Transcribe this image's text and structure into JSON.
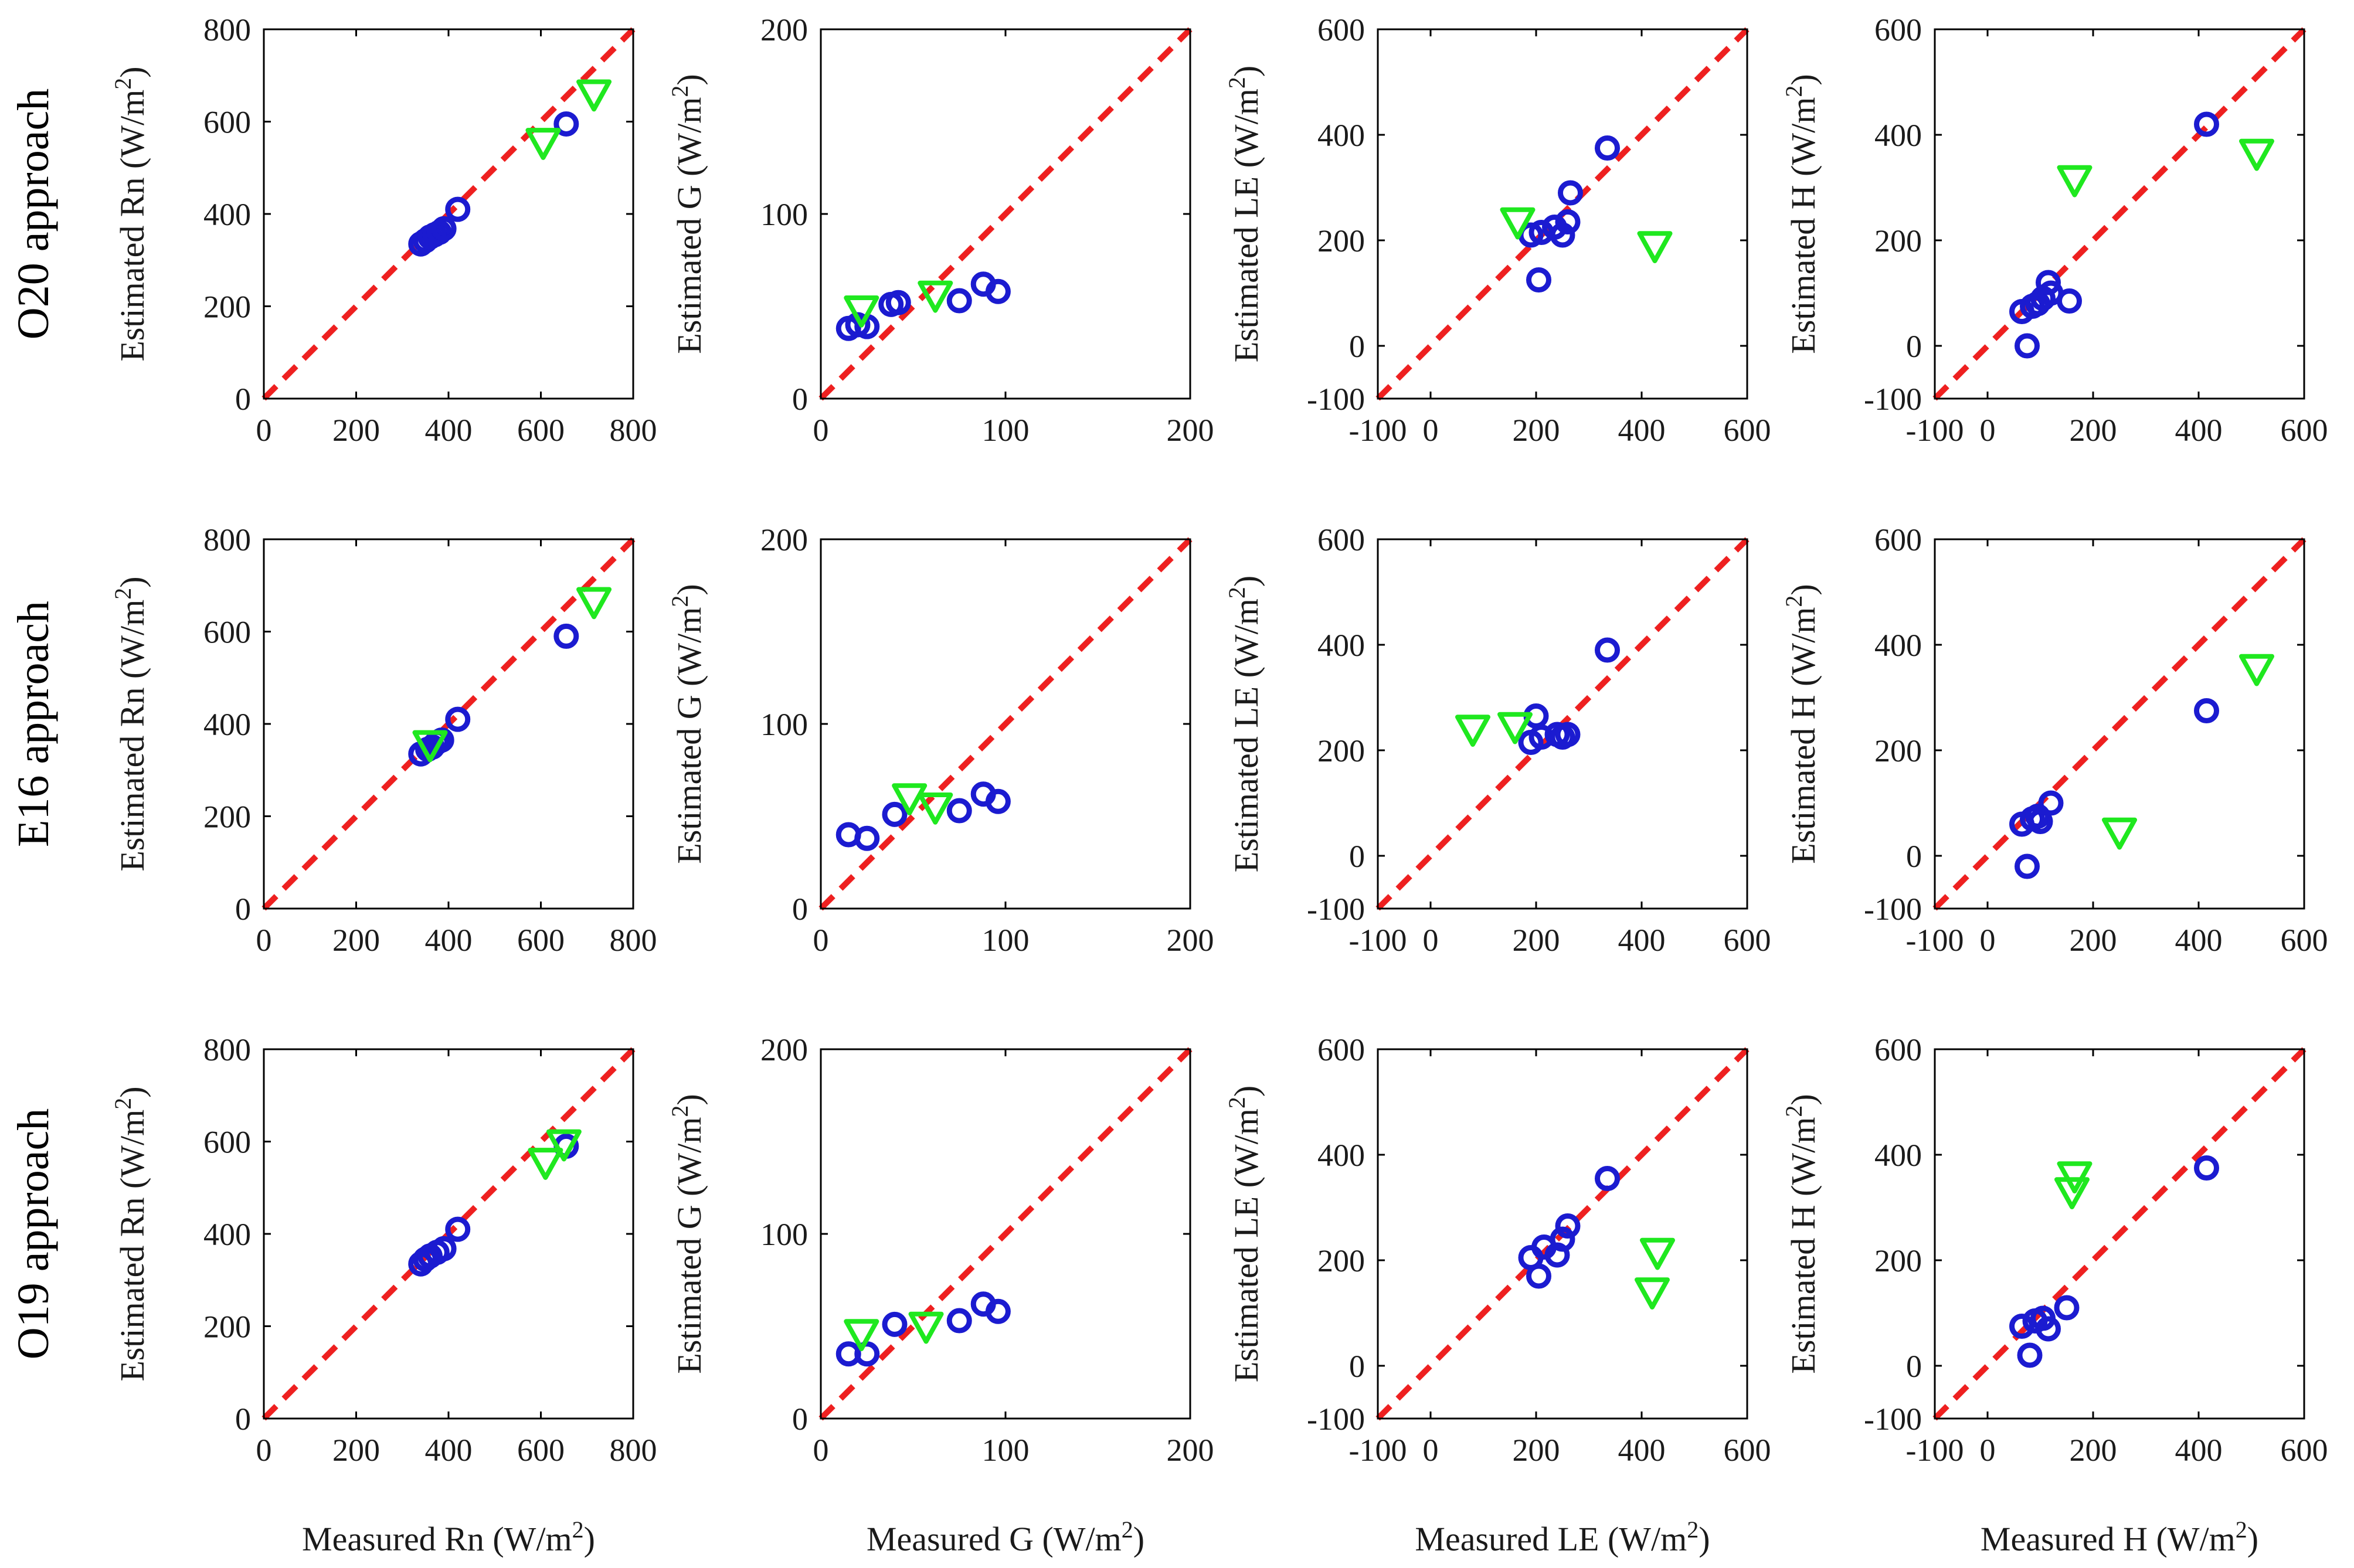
{
  "figure": {
    "row_labels": [
      "O20 approach",
      "E16 approach",
      "O19 approach"
    ],
    "x_labels": [
      "Measured Rn (W/m2)",
      "Measured G (W/m2)",
      "Measured LE (W/m2)",
      "Measured H (W/m2)"
    ],
    "colors": {
      "circle": "#1b1bd0",
      "triangle": "#1fe81f",
      "line": "#ee2020",
      "axis": "#000000"
    }
  },
  "chart_data": [
    {
      "type": "scatter",
      "panel": "O20 approach / Rn",
      "ylabel": "Estimated Rn (W/m2)",
      "xlim": [
        0,
        800
      ],
      "ylim": [
        0,
        800
      ],
      "xticks": [
        0,
        200,
        400,
        600,
        800
      ],
      "yticks": [
        0,
        200,
        400,
        600,
        800
      ],
      "series": [
        {
          "marker": "circle",
          "points": [
            [
              340,
              335
            ],
            [
              350,
              342
            ],
            [
              360,
              350
            ],
            [
              370,
              355
            ],
            [
              380,
              360
            ],
            [
              390,
              368
            ],
            [
              420,
              410
            ],
            [
              655,
              595
            ]
          ]
        },
        {
          "marker": "triangle",
          "points": [
            [
              605,
              555
            ],
            [
              715,
              660
            ]
          ]
        }
      ]
    },
    {
      "type": "scatter",
      "panel": "O20 approach / G",
      "ylabel": "Estimated G (W/m2)",
      "xlim": [
        0,
        200
      ],
      "ylim": [
        0,
        200
      ],
      "xticks": [
        0,
        100,
        200
      ],
      "yticks": [
        0,
        100,
        200
      ],
      "series": [
        {
          "marker": "circle",
          "points": [
            [
              15,
              38
            ],
            [
              20,
              40
            ],
            [
              25,
              39
            ],
            [
              38,
              51
            ],
            [
              42,
              52
            ],
            [
              75,
              53
            ],
            [
              88,
              62
            ],
            [
              96,
              58
            ]
          ]
        },
        {
          "marker": "triangle",
          "points": [
            [
              22,
              48
            ],
            [
              62,
              56
            ]
          ]
        }
      ]
    },
    {
      "type": "scatter",
      "panel": "O20 approach / LE",
      "ylabel": "Estimated LE (W/m2)",
      "xlim": [
        -100,
        600
      ],
      "ylim": [
        -100,
        600
      ],
      "xticks": [
        -100,
        0,
        200,
        400,
        600
      ],
      "yticks": [
        -100,
        0,
        200,
        400,
        600
      ],
      "series": [
        {
          "marker": "circle",
          "points": [
            [
              190,
              210
            ],
            [
              205,
              125
            ],
            [
              210,
              215
            ],
            [
              235,
              225
            ],
            [
              250,
              210
            ],
            [
              260,
              235
            ],
            [
              265,
              290
            ],
            [
              335,
              375
            ]
          ]
        },
        {
          "marker": "triangle",
          "points": [
            [
              165,
              235
            ],
            [
              425,
              190
            ]
          ]
        }
      ]
    },
    {
      "type": "scatter",
      "panel": "O20 approach / H",
      "ylabel": "Estimated H (W/m2)",
      "xlim": [
        -100,
        600
      ],
      "ylim": [
        -100,
        600
      ],
      "xticks": [
        -100,
        0,
        200,
        400,
        600
      ],
      "yticks": [
        -100,
        0,
        200,
        400,
        600
      ],
      "series": [
        {
          "marker": "circle",
          "points": [
            [
              65,
              65
            ],
            [
              75,
              0
            ],
            [
              85,
              75
            ],
            [
              95,
              80
            ],
            [
              105,
              90
            ],
            [
              115,
              120
            ],
            [
              120,
              100
            ],
            [
              155,
              85
            ],
            [
              415,
              420
            ]
          ]
        },
        {
          "marker": "triangle",
          "points": [
            [
              165,
              315
            ],
            [
              510,
              365
            ]
          ]
        }
      ]
    },
    {
      "type": "scatter",
      "panel": "E16 approach / Rn",
      "ylabel": "Estimated Rn (W/m2)",
      "xlim": [
        0,
        800
      ],
      "ylim": [
        0,
        800
      ],
      "xticks": [
        0,
        200,
        400,
        600,
        800
      ],
      "yticks": [
        0,
        200,
        400,
        600,
        800
      ],
      "series": [
        {
          "marker": "circle",
          "points": [
            [
              340,
              335
            ],
            [
              355,
              345
            ],
            [
              365,
              350
            ],
            [
              375,
              360
            ],
            [
              385,
              365
            ],
            [
              420,
              410
            ],
            [
              655,
              590
            ]
          ]
        },
        {
          "marker": "triangle",
          "points": [
            [
              360,
              355
            ],
            [
              715,
              665
            ]
          ]
        }
      ]
    },
    {
      "type": "scatter",
      "panel": "E16 approach / G",
      "ylabel": "Estimated G (W/m2)",
      "xlim": [
        0,
        200
      ],
      "ylim": [
        0,
        200
      ],
      "xticks": [
        0,
        100,
        200
      ],
      "yticks": [
        0,
        100,
        200
      ],
      "series": [
        {
          "marker": "circle",
          "points": [
            [
              15,
              40
            ],
            [
              25,
              38
            ],
            [
              40,
              51
            ],
            [
              75,
              53
            ],
            [
              88,
              62
            ],
            [
              96,
              58
            ]
          ]
        },
        {
          "marker": "triangle",
          "points": [
            [
              48,
              60
            ],
            [
              62,
              55
            ]
          ]
        }
      ]
    },
    {
      "type": "scatter",
      "panel": "E16 approach / LE",
      "ylabel": "Estimated LE (W/m2)",
      "xlim": [
        -100,
        600
      ],
      "ylim": [
        -100,
        600
      ],
      "xticks": [
        -100,
        0,
        200,
        400,
        600
      ],
      "yticks": [
        -100,
        0,
        200,
        400,
        600
      ],
      "series": [
        {
          "marker": "circle",
          "points": [
            [
              190,
              215
            ],
            [
              200,
              265
            ],
            [
              210,
              225
            ],
            [
              240,
              230
            ],
            [
              250,
              225
            ],
            [
              260,
              230
            ],
            [
              335,
              390
            ]
          ]
        },
        {
          "marker": "triangle",
          "points": [
            [
              80,
              240
            ],
            [
              160,
              245
            ]
          ]
        }
      ]
    },
    {
      "type": "scatter",
      "panel": "E16 approach / H",
      "ylabel": "Estimated H (W/m2)",
      "xlim": [
        -100,
        600
      ],
      "ylim": [
        -100,
        600
      ],
      "xticks": [
        -100,
        0,
        200,
        400,
        600
      ],
      "yticks": [
        -100,
        0,
        200,
        400,
        600
      ],
      "series": [
        {
          "marker": "circle",
          "points": [
            [
              65,
              60
            ],
            [
              75,
              -20
            ],
            [
              85,
              70
            ],
            [
              95,
              75
            ],
            [
              100,
              65
            ],
            [
              120,
              100
            ],
            [
              415,
              275
            ]
          ]
        },
        {
          "marker": "triangle",
          "points": [
            [
              250,
              45
            ],
            [
              510,
              355
            ]
          ]
        }
      ]
    },
    {
      "type": "scatter",
      "panel": "O19 approach / Rn",
      "ylabel": "Estimated Rn (W/m2)",
      "xlim": [
        0,
        800
      ],
      "ylim": [
        0,
        800
      ],
      "xticks": [
        0,
        200,
        400,
        600,
        800
      ],
      "yticks": [
        0,
        200,
        400,
        600,
        800
      ],
      "series": [
        {
          "marker": "circle",
          "points": [
            [
              340,
              335
            ],
            [
              350,
              345
            ],
            [
              360,
              352
            ],
            [
              375,
              360
            ],
            [
              390,
              368
            ],
            [
              420,
              410
            ],
            [
              655,
              590
            ]
          ]
        },
        {
          "marker": "triangle",
          "points": [
            [
              610,
              555
            ],
            [
              650,
              595
            ]
          ]
        }
      ]
    },
    {
      "type": "scatter",
      "panel": "O19 approach / G",
      "ylabel": "Estimated G (W/m2)",
      "xlim": [
        0,
        200
      ],
      "ylim": [
        0,
        200
      ],
      "xticks": [
        0,
        100,
        200
      ],
      "yticks": [
        0,
        100,
        200
      ],
      "series": [
        {
          "marker": "circle",
          "points": [
            [
              15,
              35
            ],
            [
              25,
              35
            ],
            [
              40,
              51
            ],
            [
              75,
              53
            ],
            [
              88,
              62
            ],
            [
              96,
              58
            ]
          ]
        },
        {
          "marker": "triangle",
          "points": [
            [
              22,
              46
            ],
            [
              57,
              50
            ]
          ]
        }
      ]
    },
    {
      "type": "scatter",
      "panel": "O19 approach / LE",
      "ylabel": "Estimated LE (W/m2)",
      "xlim": [
        -100,
        600
      ],
      "ylim": [
        -100,
        600
      ],
      "xticks": [
        -100,
        0,
        200,
        400,
        600
      ],
      "yticks": [
        -100,
        0,
        200,
        400,
        600
      ],
      "series": [
        {
          "marker": "circle",
          "points": [
            [
              190,
              205
            ],
            [
              205,
              170
            ],
            [
              215,
              225
            ],
            [
              240,
              210
            ],
            [
              250,
              240
            ],
            [
              260,
              265
            ],
            [
              335,
              355
            ]
          ]
        },
        {
          "marker": "triangle",
          "points": [
            [
              430,
              215
            ],
            [
              420,
              140
            ]
          ]
        }
      ]
    },
    {
      "type": "scatter",
      "panel": "O19 approach / H",
      "ylabel": "Estimated H (W/m2)",
      "xlim": [
        -100,
        600
      ],
      "ylim": [
        -100,
        600
      ],
      "xticks": [
        -100,
        0,
        200,
        400,
        600
      ],
      "yticks": [
        -100,
        0,
        200,
        400,
        600
      ],
      "series": [
        {
          "marker": "circle",
          "points": [
            [
              65,
              75
            ],
            [
              80,
              20
            ],
            [
              90,
              85
            ],
            [
              105,
              90
            ],
            [
              115,
              70
            ],
            [
              150,
              110
            ],
            [
              415,
              375
            ]
          ]
        },
        {
          "marker": "triangle",
          "points": [
            [
              160,
              330
            ],
            [
              165,
              360
            ]
          ]
        }
      ]
    }
  ]
}
